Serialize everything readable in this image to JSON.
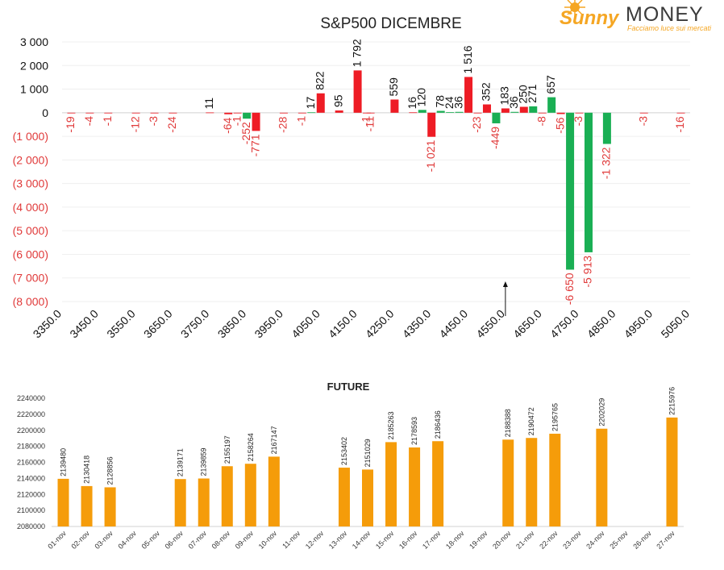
{
  "logo": {
    "word1": "Sunny",
    "word2": "MONEY",
    "tagline": "Facciamo luce sui mercati",
    "color_sun": "#f5a623",
    "color_money": "#3a3a3a"
  },
  "chart_data": [
    {
      "type": "bar",
      "title": "S&P500 DICEMBRE",
      "ylim": [
        -8000,
        3000
      ],
      "yticks": [
        3000,
        2000,
        1000,
        0,
        -1000,
        -2000,
        -3000,
        -4000,
        -5000,
        -6000,
        -7000,
        -8000
      ],
      "ytick_labels": [
        "3 000",
        "2 000",
        "1 000",
        "0",
        "(1 000)",
        "(2 000)",
        "(3 000)",
        "(4 000)",
        "(5 000)",
        "(6 000)",
        "(7 000)",
        "(8 000)"
      ],
      "xlim": [
        3350,
        5050
      ],
      "xticks": [
        3350,
        3450,
        3550,
        3650,
        3750,
        3850,
        3950,
        4050,
        4150,
        4250,
        4350,
        4450,
        4550,
        4650,
        4750,
        4850,
        4950,
        5050
      ],
      "xtick_labels": [
        "3350.0",
        "3450.0",
        "3550.0",
        "3650.0",
        "3750.0",
        "3850.0",
        "3950.0",
        "4050.0",
        "4150.0",
        "4250.0",
        "4350.0",
        "4450.0",
        "4550.0",
        "4650.0",
        "4750.0",
        "4850.0",
        "4950.0",
        "5050.0"
      ],
      "colors": {
        "red": "#ee1c25",
        "green": "#1aaf54",
        "label_neg": "#e03a3a",
        "label_pos": "#111111"
      },
      "marker_x": 4550,
      "points": [
        {
          "x": 3375,
          "value": -19,
          "label": "-19",
          "color": "red"
        },
        {
          "x": 3425,
          "value": -4,
          "label": "-4",
          "color": "red"
        },
        {
          "x": 3475,
          "value": -1,
          "label": "-1",
          "color": "red"
        },
        {
          "x": 3550,
          "value": -12,
          "label": "-12",
          "color": "red"
        },
        {
          "x": 3600,
          "value": -3,
          "label": "-3",
          "color": "red"
        },
        {
          "x": 3650,
          "value": -24,
          "label": "-24",
          "color": "red"
        },
        {
          "x": 3750,
          "value": 11,
          "label": "11",
          "color": "red"
        },
        {
          "x": 3800,
          "value": -64,
          "label": "-64",
          "color": "red"
        },
        {
          "x": 3850,
          "value": -252,
          "label": "-252",
          "color": "green"
        },
        {
          "x": 3875,
          "value": -771,
          "label": "-771",
          "color": "red"
        },
        {
          "x": 3825,
          "value": -1,
          "label": "-1",
          "color": "red"
        },
        {
          "x": 3950,
          "value": -28,
          "label": "-28",
          "color": "red"
        },
        {
          "x": 4000,
          "value": -1,
          "label": "-1",
          "color": "red"
        },
        {
          "x": 4025,
          "value": 17,
          "label": "17",
          "color": "green"
        },
        {
          "x": 4050,
          "value": 822,
          "label": "822",
          "color": "red"
        },
        {
          "x": 4100,
          "value": 95,
          "label": "95",
          "color": "red"
        },
        {
          "x": 4150,
          "value": 1792,
          "label": "1 792",
          "color": "red"
        },
        {
          "x": 4175,
          "value": -1,
          "label": "-1",
          "color": "red"
        },
        {
          "x": 4185,
          "value": -11,
          "label": "-11",
          "color": "red"
        },
        {
          "x": 4250,
          "value": 559,
          "label": "559",
          "color": "red"
        },
        {
          "x": 4300,
          "value": 16,
          "label": "16",
          "color": "red"
        },
        {
          "x": 4325,
          "value": 120,
          "label": "120",
          "color": "green"
        },
        {
          "x": 4350,
          "value": -1021,
          "label": "-1 021",
          "color": "red"
        },
        {
          "x": 4375,
          "value": 78,
          "label": "78",
          "color": "green"
        },
        {
          "x": 4400,
          "value": 24,
          "label": "24",
          "color": "green"
        },
        {
          "x": 4425,
          "value": 36,
          "label": "36",
          "color": "green"
        },
        {
          "x": 4450,
          "value": 1516,
          "label": "1 516",
          "color": "red"
        },
        {
          "x": 4475,
          "value": -23,
          "label": "-23",
          "color": "red"
        },
        {
          "x": 4500,
          "value": 352,
          "label": "352",
          "color": "red"
        },
        {
          "x": 4525,
          "value": -449,
          "label": "-449",
          "color": "green"
        },
        {
          "x": 4550,
          "value": 183,
          "label": "183",
          "color": "red"
        },
        {
          "x": 4575,
          "value": 36,
          "label": "36",
          "color": "green"
        },
        {
          "x": 4600,
          "value": 250,
          "label": "250",
          "color": "red"
        },
        {
          "x": 4625,
          "value": 271,
          "label": "271",
          "color": "green"
        },
        {
          "x": 4650,
          "value": -8,
          "label": "-8",
          "color": "red"
        },
        {
          "x": 4675,
          "value": 657,
          "label": "657",
          "color": "green"
        },
        {
          "x": 4700,
          "value": -56,
          "label": "-56",
          "color": "red"
        },
        {
          "x": 4725,
          "value": -6650,
          "label": "-6 650",
          "color": "green"
        },
        {
          "x": 4750,
          "value": -3,
          "label": "-3",
          "color": "red"
        },
        {
          "x": 4775,
          "value": -5913,
          "label": "-5 913",
          "color": "green"
        },
        {
          "x": 4825,
          "value": -1322,
          "label": "-1 322",
          "color": "green"
        },
        {
          "x": 4925,
          "value": -3,
          "label": "-3",
          "color": "red"
        },
        {
          "x": 5025,
          "value": -16,
          "label": "-16",
          "color": "red"
        }
      ]
    },
    {
      "type": "bar",
      "title": "FUTURE",
      "ylim": [
        2080000,
        2240000
      ],
      "yticks": [
        2080000,
        2100000,
        2120000,
        2140000,
        2160000,
        2180000,
        2200000,
        2220000,
        2240000
      ],
      "ytick_labels": [
        "2080000",
        "2100000",
        "2120000",
        "2140000",
        "2160000",
        "2180000",
        "2200000",
        "2220000",
        "2240000"
      ],
      "color": "#f59c0a",
      "categories": [
        "01-nov",
        "02-nov",
        "03-nov",
        "04-nov",
        "05-nov",
        "06-nov",
        "07-nov",
        "08-nov",
        "09-nov",
        "10-nov",
        "11-nov",
        "12-nov",
        "13-nov",
        "14-nov",
        "15-nov",
        "16-nov",
        "17-nov",
        "18-nov",
        "19-nov",
        "20-nov",
        "21-nov",
        "22-nov",
        "23-nov",
        "24-nov",
        "25-nov",
        "26-nov",
        "27-nov"
      ],
      "values": [
        2139480,
        2130418,
        2128856,
        null,
        null,
        2139171,
        2139859,
        2155197,
        2158264,
        2167147,
        null,
        null,
        2153402,
        2151029,
        2185263,
        2178593,
        2186436,
        null,
        null,
        2188388,
        2190472,
        2195765,
        null,
        2202029,
        null,
        null,
        2215976
      ]
    }
  ]
}
